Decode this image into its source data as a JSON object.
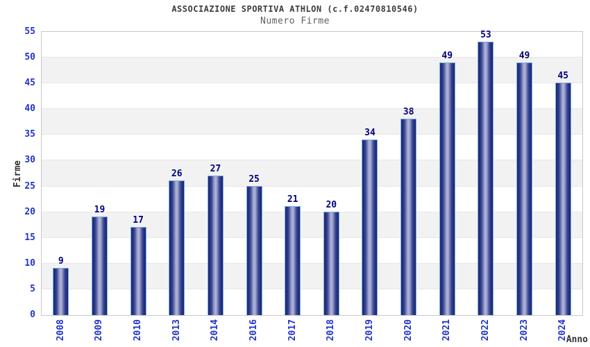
{
  "chart_data": {
    "type": "bar",
    "title": "ASSOCIAZIONE SPORTIVA ATHLON (c.f.02470810546)",
    "subtitle": "Numero Firme",
    "xlabel": "Anno",
    "ylabel": "Firme",
    "categories": [
      "2008",
      "2009",
      "2010",
      "2013",
      "2014",
      "2016",
      "2017",
      "2018",
      "2019",
      "2020",
      "2021",
      "2022",
      "2023",
      "2024"
    ],
    "values": [
      9,
      19,
      17,
      26,
      27,
      25,
      21,
      20,
      34,
      38,
      49,
      53,
      49,
      45
    ],
    "ylim": [
      0,
      55
    ],
    "ytick_step": 5,
    "grid": "horizontal-bands",
    "legend": "none",
    "value_labels": "above-bars",
    "colors": {
      "tick_label": "#2233cc",
      "value_label": "#00007d",
      "axis_title": "#333333",
      "title": "#3c3c3c",
      "subtitle": "#5f5f5f",
      "bar_dark": "#1c2a7c",
      "bar_mid": "#39458e",
      "bar_light": "#a9afd7",
      "bar_border": "#79aede",
      "band_light": "#ffffff",
      "band_shade": "#f2f2f2",
      "grid_line": "#e6e6e6",
      "plot_border": "#c9c9c9"
    }
  }
}
